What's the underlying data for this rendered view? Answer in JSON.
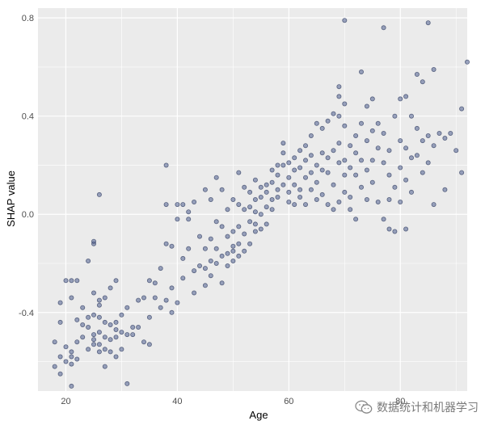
{
  "chart_data": {
    "type": "scatter",
    "title": "",
    "xlabel": "Age",
    "ylabel": "SHAP value",
    "xlim": [
      15,
      92
    ],
    "ylim": [
      -0.72,
      0.84
    ],
    "xticks": [
      20,
      40,
      60,
      80
    ],
    "yticks": [
      -0.4,
      0.0,
      0.4,
      0.8
    ],
    "xtick_labels": [
      "20",
      "40",
      "60",
      "80"
    ],
    "ytick_labels": [
      "-0.4",
      "0.0",
      "0.4",
      "0.8"
    ],
    "grid": true,
    "panel_color": "#ebebeb",
    "point_fill": "#4f5f8f",
    "point_stroke": "#2e3a5e",
    "point_opacity": 0.55,
    "points": [
      [
        18,
        -0.52
      ],
      [
        18,
        -0.62
      ],
      [
        19,
        -0.58
      ],
      [
        19,
        -0.36
      ],
      [
        19,
        -0.44
      ],
      [
        19,
        -0.65
      ],
      [
        20,
        -0.27
      ],
      [
        20,
        -0.54
      ],
      [
        20,
        -0.6
      ],
      [
        21,
        -0.34
      ],
      [
        21,
        -0.56
      ],
      [
        21,
        -0.27
      ],
      [
        21,
        -0.58
      ],
      [
        21,
        -0.61
      ],
      [
        21,
        -0.7
      ],
      [
        22,
        -0.43
      ],
      [
        22,
        -0.59
      ],
      [
        22,
        -0.52
      ],
      [
        22,
        -0.27
      ],
      [
        23,
        -0.38
      ],
      [
        23,
        -0.45
      ],
      [
        23,
        -0.5
      ],
      [
        24,
        -0.19
      ],
      [
        24,
        -0.42
      ],
      [
        24,
        -0.46
      ],
      [
        24,
        -0.55
      ],
      [
        25,
        -0.12
      ],
      [
        25,
        -0.11
      ],
      [
        25,
        -0.32
      ],
      [
        25,
        -0.41
      ],
      [
        25,
        -0.49
      ],
      [
        25,
        -0.53
      ],
      [
        25,
        -0.51
      ],
      [
        26,
        0.08
      ],
      [
        26,
        -0.35
      ],
      [
        26,
        -0.37
      ],
      [
        26,
        -0.42
      ],
      [
        26,
        -0.48
      ],
      [
        26,
        -0.53
      ],
      [
        26,
        -0.56
      ],
      [
        27,
        -0.34
      ],
      [
        27,
        -0.44
      ],
      [
        27,
        -0.5
      ],
      [
        27,
        -0.55
      ],
      [
        27,
        -0.62
      ],
      [
        28,
        -0.3
      ],
      [
        28,
        -0.45
      ],
      [
        28,
        -0.56
      ],
      [
        28,
        -0.51
      ],
      [
        29,
        -0.27
      ],
      [
        29,
        -0.44
      ],
      [
        29,
        -0.47
      ],
      [
        29,
        -0.5
      ],
      [
        29,
        -0.58
      ],
      [
        30,
        -0.41
      ],
      [
        30,
        -0.48
      ],
      [
        30,
        -0.55
      ],
      [
        31,
        -0.38
      ],
      [
        31,
        -0.49
      ],
      [
        31,
        -0.69
      ],
      [
        32,
        -0.46
      ],
      [
        32,
        -0.49
      ],
      [
        33,
        -0.35
      ],
      [
        33,
        -0.46
      ],
      [
        34,
        -0.34
      ],
      [
        34,
        -0.52
      ],
      [
        35,
        -0.27
      ],
      [
        35,
        -0.42
      ],
      [
        35,
        -0.53
      ],
      [
        36,
        -0.34
      ],
      [
        36,
        -0.28
      ],
      [
        37,
        -0.22
      ],
      [
        37,
        -0.38
      ],
      [
        38,
        0.2
      ],
      [
        38,
        -0.35
      ],
      [
        38,
        -0.12
      ],
      [
        38,
        0.04
      ],
      [
        39,
        -0.4
      ],
      [
        39,
        -0.3
      ],
      [
        39,
        -0.13
      ],
      [
        40,
        -0.36
      ],
      [
        40,
        -0.02
      ],
      [
        40,
        0.04
      ],
      [
        41,
        0.04
      ],
      [
        41,
        -0.18
      ],
      [
        41,
        -0.26
      ],
      [
        42,
        -0.02
      ],
      [
        42,
        -0.14
      ],
      [
        42,
        0.01
      ],
      [
        43,
        -0.23
      ],
      [
        43,
        0.05
      ],
      [
        43,
        -0.32
      ],
      [
        44,
        -0.21
      ],
      [
        44,
        -0.09
      ],
      [
        45,
        -0.22
      ],
      [
        45,
        0.1
      ],
      [
        45,
        -0.14
      ],
      [
        45,
        -0.29
      ],
      [
        46,
        -0.25
      ],
      [
        46,
        0.06
      ],
      [
        46,
        -0.19
      ],
      [
        46,
        -0.1
      ],
      [
        47,
        -0.2
      ],
      [
        47,
        -0.03
      ],
      [
        47,
        0.15
      ],
      [
        47,
        -0.14
      ],
      [
        48,
        -0.17
      ],
      [
        48,
        -0.05
      ],
      [
        48,
        0.1
      ],
      [
        48,
        -0.28
      ],
      [
        49,
        -0.16
      ],
      [
        49,
        -0.21
      ],
      [
        49,
        -0.09
      ],
      [
        49,
        0.02
      ],
      [
        50,
        -0.13
      ],
      [
        50,
        -0.07
      ],
      [
        50,
        0.06
      ],
      [
        50,
        -0.19
      ],
      [
        50,
        -0.15
      ],
      [
        51,
        0.04
      ],
      [
        51,
        0.17
      ],
      [
        51,
        -0.12
      ],
      [
        51,
        -0.05
      ],
      [
        51,
        -0.17
      ],
      [
        52,
        0.11
      ],
      [
        52,
        -0.08
      ],
      [
        52,
        0.02
      ],
      [
        52,
        -0.15
      ],
      [
        53,
        0.09
      ],
      [
        53,
        -0.03
      ],
      [
        53,
        0.03
      ],
      [
        53,
        -0.12
      ],
      [
        54,
        0.06
      ],
      [
        54,
        0.14
      ],
      [
        54,
        -0.04
      ],
      [
        54,
        -0.07
      ],
      [
        54,
        0.01
      ],
      [
        55,
        0.11
      ],
      [
        55,
        0.0
      ],
      [
        55,
        -0.06
      ],
      [
        55,
        0.07
      ],
      [
        56,
        0.12
      ],
      [
        56,
        0.03
      ],
      [
        56,
        0.09
      ],
      [
        56,
        -0.04
      ],
      [
        57,
        0.18
      ],
      [
        57,
        0.06
      ],
      [
        57,
        0.13
      ],
      [
        57,
        0.02
      ],
      [
        58,
        0.2
      ],
      [
        58,
        0.16
      ],
      [
        58,
        0.1
      ],
      [
        58,
        0.07
      ],
      [
        59,
        0.29
      ],
      [
        59,
        0.25
      ],
      [
        59,
        0.2
      ],
      [
        59,
        0.12
      ],
      [
        60,
        0.21
      ],
      [
        60,
        0.15
      ],
      [
        60,
        0.05
      ],
      [
        60,
        0.09
      ],
      [
        61,
        0.23
      ],
      [
        61,
        0.18
      ],
      [
        61,
        0.12
      ],
      [
        61,
        0.04
      ],
      [
        62,
        0.26
      ],
      [
        62,
        0.19
      ],
      [
        62,
        0.1
      ],
      [
        62,
        0.07
      ],
      [
        63,
        0.22
      ],
      [
        63,
        0.15
      ],
      [
        63,
        0.28
      ],
      [
        63,
        0.04
      ],
      [
        64,
        0.24
      ],
      [
        64,
        0.17
      ],
      [
        64,
        0.1
      ],
      [
        64,
        0.32
      ],
      [
        65,
        0.37
      ],
      [
        65,
        0.2
      ],
      [
        65,
        0.13
      ],
      [
        65,
        0.06
      ],
      [
        66,
        0.35
      ],
      [
        66,
        0.25
      ],
      [
        66,
        0.18
      ],
      [
        66,
        0.08
      ],
      [
        67,
        0.38
      ],
      [
        67,
        0.23
      ],
      [
        67,
        0.17
      ],
      [
        67,
        0.04
      ],
      [
        68,
        0.41
      ],
      [
        68,
        0.26
      ],
      [
        68,
        0.12
      ],
      [
        68,
        0.02
      ],
      [
        69,
        0.52
      ],
      [
        69,
        0.48
      ],
      [
        69,
        0.4
      ],
      [
        69,
        0.29
      ],
      [
        69,
        0.21
      ],
      [
        69,
        0.05
      ],
      [
        70,
        0.79
      ],
      [
        70,
        0.45
      ],
      [
        70,
        0.36
      ],
      [
        70,
        0.22
      ],
      [
        70,
        0.16
      ],
      [
        70,
        0.09
      ],
      [
        71,
        0.28
      ],
      [
        71,
        0.19
      ],
      [
        71,
        0.07
      ],
      [
        71,
        0.02
      ],
      [
        72,
        0.32
      ],
      [
        72,
        0.25
      ],
      [
        72,
        0.16
      ],
      [
        72,
        -0.02
      ],
      [
        73,
        0.58
      ],
      [
        73,
        0.37
      ],
      [
        73,
        0.22
      ],
      [
        73,
        0.11
      ],
      [
        74,
        0.44
      ],
      [
        74,
        0.3
      ],
      [
        74,
        0.18
      ],
      [
        74,
        0.06
      ],
      [
        75,
        0.47
      ],
      [
        75,
        0.34
      ],
      [
        75,
        0.22
      ],
      [
        75,
        0.13
      ],
      [
        76,
        0.37
      ],
      [
        76,
        0.27
      ],
      [
        76,
        0.05
      ],
      [
        77,
        0.76
      ],
      [
        77,
        0.33
      ],
      [
        77,
        0.21
      ],
      [
        77,
        -0.02
      ],
      [
        78,
        0.26
      ],
      [
        78,
        0.16
      ],
      [
        78,
        0.06
      ],
      [
        78,
        -0.06
      ],
      [
        79,
        0.4
      ],
      [
        79,
        0.11
      ],
      [
        79,
        -0.07
      ],
      [
        80,
        0.47
      ],
      [
        80,
        0.3
      ],
      [
        80,
        0.19
      ],
      [
        80,
        0.05
      ],
      [
        81,
        0.48
      ],
      [
        81,
        0.27
      ],
      [
        81,
        0.14
      ],
      [
        81,
        -0.06
      ],
      [
        82,
        0.4
      ],
      [
        82,
        0.23
      ],
      [
        82,
        0.09
      ],
      [
        83,
        0.57
      ],
      [
        83,
        0.35
      ],
      [
        83,
        0.24
      ],
      [
        84,
        0.54
      ],
      [
        84,
        0.3
      ],
      [
        84,
        0.17
      ],
      [
        85,
        0.78
      ],
      [
        85,
        0.32
      ],
      [
        85,
        0.21
      ],
      [
        86,
        0.59
      ],
      [
        86,
        0.28
      ],
      [
        86,
        0.04
      ],
      [
        87,
        0.33
      ],
      [
        88,
        0.31
      ],
      [
        88,
        0.1
      ],
      [
        89,
        0.33
      ],
      [
        90,
        0.26
      ],
      [
        91,
        0.43
      ],
      [
        91,
        0.17
      ],
      [
        92,
        0.62
      ]
    ]
  },
  "watermark": {
    "icon": "wechat-icon",
    "text": "数据统计和机器学习"
  }
}
